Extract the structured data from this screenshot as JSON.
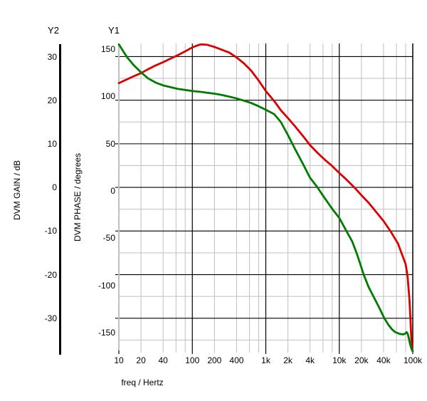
{
  "page": {
    "background": "#ffffff"
  },
  "y2_axis": {
    "title": "Y2",
    "axis_label": "DVM GAIN / dB",
    "tick_labels": [
      "30",
      "20",
      "10",
      "0",
      "-10",
      "-20",
      "-30"
    ]
  },
  "y1_axis": {
    "title": "Y1",
    "axis_label": "DVM PHASE / degrees",
    "tick_labels": [
      "150",
      "100",
      "50",
      "0",
      "-50",
      "-100",
      "-150"
    ]
  },
  "x_axis": {
    "axis_label": "freq / Hertz",
    "tick_labels": [
      "10",
      "20",
      "40",
      "100",
      "200",
      "400",
      "1k",
      "2k",
      "4k",
      "10k",
      "20k",
      "40k",
      "100k"
    ],
    "tick_values": [
      10,
      20,
      40,
      100,
      200,
      400,
      1000,
      2000,
      4000,
      10000,
      20000,
      40000,
      100000
    ]
  },
  "colors": {
    "gain_curve": "#dd0000",
    "phase_curve": "#007d00",
    "major_grid": "#000000",
    "minor_grid": "#c0c0c0",
    "axis_line": "#c0c0c0",
    "y2_axis_bar": "#000000",
    "text": "#000000"
  },
  "chart_data": {
    "type": "line",
    "x_scale": "log",
    "x_label": "freq / Hertz",
    "x_range": [
      10,
      100000
    ],
    "grid": "major-black-minor-gray",
    "legend": "none",
    "y_axes": [
      {
        "id": "Y1",
        "label": "DVM PHASE / degrees",
        "units": "degrees",
        "tick_min": -150,
        "tick_max": 150,
        "major_step": 50,
        "minor_step": 25
      },
      {
        "id": "Y2",
        "label": "DVM GAIN / dB",
        "units": "dB",
        "tick_min": -30,
        "tick_max": 30,
        "major_step": 10,
        "minor_step": 5
      }
    ],
    "series": [
      {
        "name": "DVM GAIN",
        "axis": "Y2",
        "units": "dB",
        "color": "#dd0000",
        "points": [
          [
            10,
            23.9
          ],
          [
            13,
            24.8
          ],
          [
            16,
            25.5
          ],
          [
            20,
            26.2
          ],
          [
            25,
            27.1
          ],
          [
            32,
            28.0
          ],
          [
            40,
            28.7
          ],
          [
            50,
            29.5
          ],
          [
            63,
            30.3
          ],
          [
            80,
            31.2
          ],
          [
            100,
            32.1
          ],
          [
            115,
            32.5
          ],
          [
            130,
            32.8
          ],
          [
            160,
            32.7
          ],
          [
            200,
            32.2
          ],
          [
            250,
            31.6
          ],
          [
            320,
            30.9
          ],
          [
            400,
            29.8
          ],
          [
            500,
            28.5
          ],
          [
            630,
            26.8
          ],
          [
            800,
            24.5
          ],
          [
            1000,
            22.1
          ],
          [
            1300,
            19.8
          ],
          [
            1600,
            17.7
          ],
          [
            2000,
            15.9
          ],
          [
            2500,
            14.0
          ],
          [
            3200,
            11.8
          ],
          [
            4000,
            9.7
          ],
          [
            5000,
            8.0
          ],
          [
            6300,
            6.4
          ],
          [
            8000,
            4.9
          ],
          [
            10000,
            3.3
          ],
          [
            12500,
            1.8
          ],
          [
            16000,
            0.0
          ],
          [
            20000,
            -1.8
          ],
          [
            25000,
            -3.5
          ],
          [
            32000,
            -5.7
          ],
          [
            40000,
            -7.7
          ],
          [
            50000,
            -10.1
          ],
          [
            63000,
            -12.9
          ],
          [
            80000,
            -17.6
          ],
          [
            85000,
            -20.4
          ],
          [
            90000,
            -25.6
          ],
          [
            93000,
            -30.2
          ],
          [
            95000,
            -33.8
          ],
          [
            97000,
            -36.3
          ],
          [
            98000,
            -37.2
          ]
        ]
      },
      {
        "name": "DVM PHASE",
        "axis": "Y1",
        "units": "degrees",
        "color": "#007d00",
        "points": [
          [
            10,
            164
          ],
          [
            11.5,
            156
          ],
          [
            13,
            149
          ],
          [
            16,
            140
          ],
          [
            20,
            132
          ],
          [
            25,
            125
          ],
          [
            32,
            120
          ],
          [
            40,
            117
          ],
          [
            50,
            115
          ],
          [
            63,
            113
          ],
          [
            80,
            111.7
          ],
          [
            100,
            110.5
          ],
          [
            130,
            109.5
          ],
          [
            160,
            108.5
          ],
          [
            200,
            107.5
          ],
          [
            250,
            106
          ],
          [
            320,
            104
          ],
          [
            400,
            102
          ],
          [
            500,
            99.5
          ],
          [
            630,
            96.8
          ],
          [
            800,
            93
          ],
          [
            1000,
            89
          ],
          [
            1300,
            84
          ],
          [
            1600,
            75
          ],
          [
            2000,
            60
          ],
          [
            2500,
            44
          ],
          [
            3200,
            27
          ],
          [
            4000,
            11
          ],
          [
            5000,
            0.5
          ],
          [
            6300,
            -12
          ],
          [
            8000,
            -24.5
          ],
          [
            10000,
            -35
          ],
          [
            12500,
            -50
          ],
          [
            15000,
            -62
          ],
          [
            17500,
            -77
          ],
          [
            21500,
            -100
          ],
          [
            25000,
            -114
          ],
          [
            30000,
            -127
          ],
          [
            35000,
            -138
          ],
          [
            41000,
            -150
          ],
          [
            47000,
            -158
          ],
          [
            52500,
            -163
          ],
          [
            58000,
            -166
          ],
          [
            66500,
            -168
          ],
          [
            74500,
            -168.5
          ],
          [
            79500,
            -167.5
          ],
          [
            82500,
            -166
          ],
          [
            85500,
            -168
          ],
          [
            88500,
            -173
          ],
          [
            91500,
            -179
          ],
          [
            95000,
            -184
          ],
          [
            98500,
            -187.5
          ],
          [
            100000,
            -187.5
          ]
        ]
      }
    ]
  }
}
